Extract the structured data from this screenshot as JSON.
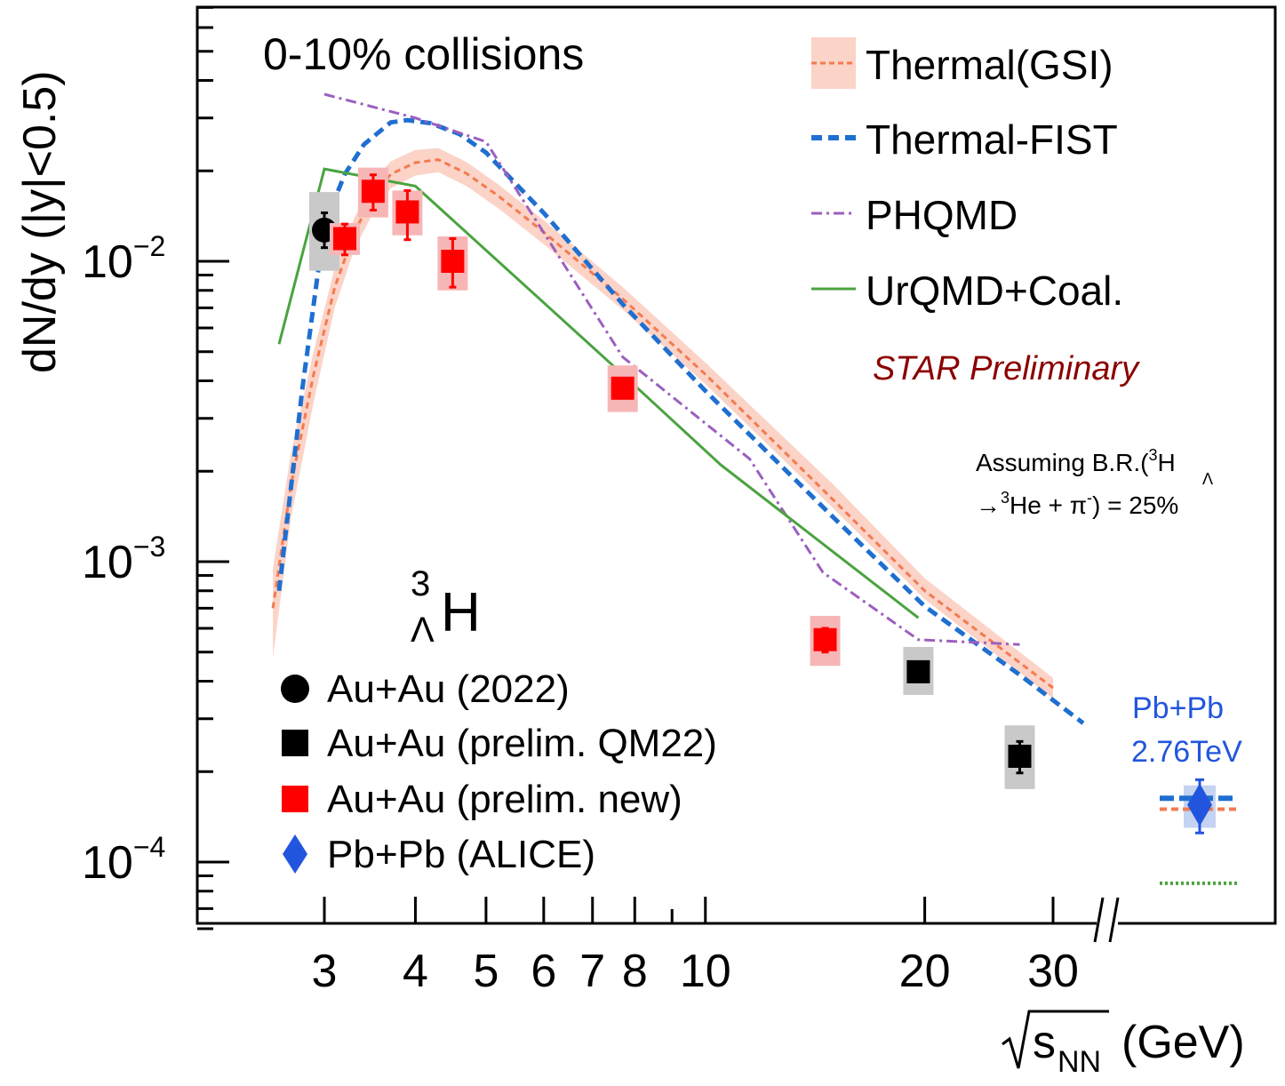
{
  "chart_data": {
    "type": "scatter",
    "y_scale": "log",
    "x_scale": "log",
    "ylabel": "dN/dy (|y|<0.5)",
    "xlabel_root": "s",
    "xlabel_sub": "NN",
    "xlabel_unit": "(GeV)",
    "ylim": [
      6e-05,
      0.075
    ],
    "xlim": [
      2.45,
      48
    ],
    "x_ticks_major": [
      3,
      4,
      5,
      6,
      7,
      8,
      10,
      20,
      30
    ],
    "x_ticks_minor": [
      9
    ],
    "x_tick_labels": [
      "3",
      "4",
      "5",
      "6",
      "7",
      "8",
      "10",
      "20",
      "30"
    ],
    "y_ticks_major": [
      0.0001,
      0.001,
      0.01
    ],
    "y_tick_base": "10",
    "y_tick_exponents": [
      "−4",
      "−3",
      "−2"
    ],
    "header_text": "0-10% collisions",
    "particle": {
      "super": "3",
      "sub": "Λ",
      "symbol": "H"
    },
    "star_label": "STAR Preliminary",
    "br_note": {
      "line1_a": "Assuming B.R.(",
      "line1_sup": "3",
      "line1_sub": "Λ",
      "line1_b": "H",
      "line2_a": "→",
      "line2_sup": "3",
      "line2_b": "He + π",
      "line2_sup2": "-",
      "line2_c": ") = 25%"
    },
    "alice_label": [
      "Pb+Pb",
      "2.76TeV"
    ],
    "colors": {
      "thermal_gsi": "#f47a50",
      "thermal_gsi_band": "#fbd3c7",
      "thermal_fist": "#1f6fd1",
      "phqmd": "#9c5fbf",
      "urqmd": "#4aa33f",
      "red": "#ff0000",
      "black": "#000000",
      "alice": "#2255dd",
      "star_text": "#8b0000"
    },
    "legend_models": [
      {
        "name": "Thermal(GSI)",
        "style": "band-dash"
      },
      {
        "name": "Thermal-FIST",
        "style": "dash"
      },
      {
        "name": "PHQMD",
        "style": "dashdot"
      },
      {
        "name": "UrQMD+Coal.",
        "style": "solid"
      }
    ],
    "legend_data": [
      {
        "name": "Au+Au (2022)",
        "marker": "circle"
      },
      {
        "name": "Au+Au (prelim. QM22)",
        "marker": "square-black"
      },
      {
        "name": "Au+Au (prelim. new)",
        "marker": "square-red"
      },
      {
        "name": "Pb+Pb (ALICE)",
        "marker": "diamond"
      }
    ],
    "series_data": [
      {
        "name": "Au+Au (2022)",
        "marker": "circle",
        "color": "#000000",
        "box": "#c9c9c9",
        "points": [
          {
            "x": 3.0,
            "y": 0.0127,
            "err_lo": 0.0111,
            "err_hi": 0.0145,
            "sys_lo": 0.0093,
            "sys_hi": 0.017
          }
        ]
      },
      {
        "name": "Au+Au (prelim. new)",
        "marker": "square",
        "color": "#ff0000",
        "box": "#f7b6b6",
        "points": [
          {
            "x": 3.2,
            "y": 0.0119,
            "err_lo": 0.0105,
            "err_hi": 0.0133,
            "sys_lo": 0.0105,
            "sys_hi": 0.0134
          },
          {
            "x": 3.5,
            "y": 0.0171,
            "err_lo": 0.0148,
            "err_hi": 0.0194,
            "sys_lo": 0.014,
            "sys_hi": 0.0205
          },
          {
            "x": 3.9,
            "y": 0.0146,
            "err_lo": 0.0118,
            "err_hi": 0.0172,
            "sys_lo": 0.0122,
            "sys_hi": 0.0172
          },
          {
            "x": 4.5,
            "y": 0.01,
            "err_lo": 0.0082,
            "err_hi": 0.0119,
            "sys_lo": 0.008,
            "sys_hi": 0.0121
          },
          {
            "x": 7.7,
            "y": 0.00378,
            "err_lo": 0.00355,
            "err_hi": 0.004,
            "sys_lo": 0.00315,
            "sys_hi": 0.0045
          },
          {
            "x": 14.6,
            "y": 0.00055,
            "err_lo": 0.0005,
            "err_hi": 0.0006,
            "sys_lo": 0.00045,
            "sys_hi": 0.00066
          }
        ]
      },
      {
        "name": "Au+Au (prelim. QM22)",
        "marker": "square",
        "color": "#000000",
        "box": "#c9c9c9",
        "points": [
          {
            "x": 19.6,
            "y": 0.00043,
            "err_lo": 0.0004,
            "err_hi": 0.00046,
            "sys_lo": 0.00036,
            "sys_hi": 0.00052
          },
          {
            "x": 27.0,
            "y": 0.000225,
            "err_lo": 0.000198,
            "err_hi": 0.000252,
            "sys_lo": 0.000175,
            "sys_hi": 0.000285
          }
        ]
      }
    ],
    "alice_point": {
      "y": 0.000155,
      "err_lo": 0.000125,
      "err_hi": 0.000188,
      "sys_lo": 0.00013,
      "sys_hi": 0.00018,
      "thermal_fist": 0.000163,
      "thermal_gsi": 0.00015,
      "urqmd": 8.5e-05
    },
    "model_curves": [
      {
        "name": "Thermal(GSI)",
        "x": [
          2.55,
          2.7,
          2.9,
          3.1,
          3.3,
          3.5,
          3.7,
          4.0,
          4.3,
          4.7,
          5.2,
          6.0,
          7.7,
          10,
          15,
          20,
          30
        ],
        "y": [
          0.0007,
          0.0018,
          0.0042,
          0.0082,
          0.0125,
          0.0165,
          0.0195,
          0.0213,
          0.0218,
          0.0196,
          0.0165,
          0.0125,
          0.0075,
          0.0042,
          0.0016,
          0.0008,
          0.00038
        ],
        "band_lo": [
          0.00048,
          0.0014,
          0.0034,
          0.007,
          0.011,
          0.0145,
          0.0175,
          0.0193,
          0.0198,
          0.0178,
          0.015,
          0.0114,
          0.0069,
          0.0039,
          0.0015,
          0.00075,
          0.00035
        ],
        "band_hi": [
          0.00095,
          0.0023,
          0.005,
          0.0095,
          0.014,
          0.0185,
          0.0215,
          0.0235,
          0.0238,
          0.0214,
          0.018,
          0.0137,
          0.0082,
          0.0046,
          0.0018,
          0.00088,
          0.00041
        ]
      },
      {
        "name": "Thermal-FIST",
        "x": [
          2.6,
          2.8,
          3.0,
          3.2,
          3.4,
          3.7,
          3.9,
          4.2,
          4.6,
          5.0,
          6.0,
          7.7,
          10,
          15,
          20,
          27,
          33
        ],
        "y": [
          0.0008,
          0.0038,
          0.0132,
          0.0195,
          0.0245,
          0.029,
          0.0295,
          0.0288,
          0.0265,
          0.023,
          0.0145,
          0.0072,
          0.0037,
          0.0014,
          0.00071,
          0.00042,
          0.00029
        ]
      },
      {
        "name": "PHQMD",
        "x": [
          3.0,
          4.0,
          5.0,
          7.7,
          11.5,
          14.5,
          19.6,
          27
        ],
        "y": [
          0.036,
          0.03,
          0.025,
          0.0048,
          0.0022,
          0.00092,
          0.00055,
          0.00053
        ]
      },
      {
        "name": "UrQMD+Coal.",
        "x": [
          2.6,
          3.0,
          4.0,
          7.7,
          10.5,
          19.6
        ],
        "y": [
          0.0053,
          0.0203,
          0.0178,
          0.0042,
          0.0021,
          0.00065
        ]
      }
    ]
  }
}
